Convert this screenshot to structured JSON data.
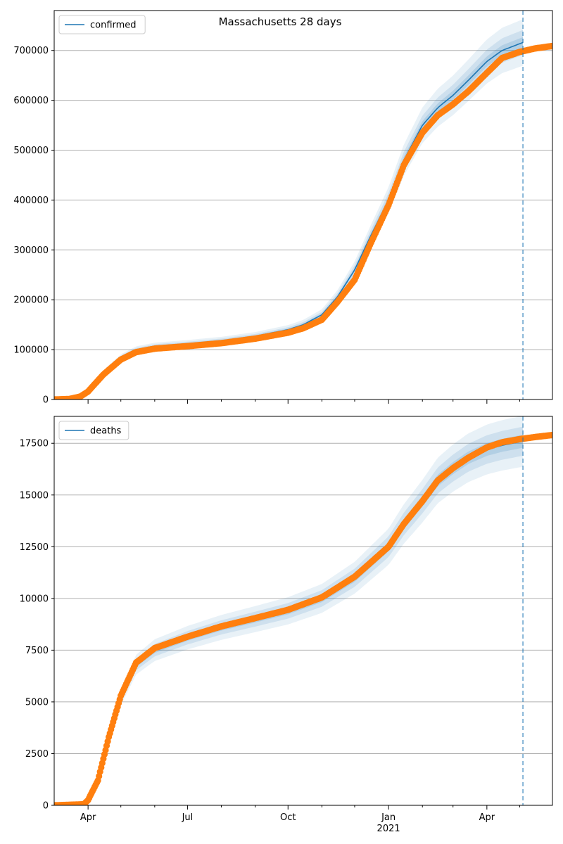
{
  "figure": {
    "title": "Massachusetts 28 days"
  },
  "colors": {
    "model": "#1f77b4",
    "observed": "#ff7f0e",
    "band": "#1f77b4",
    "grid": "#b0b0b0",
    "forecast_line": "#1f77b4"
  },
  "chart_data": [
    {
      "type": "line",
      "legend": "confirmed",
      "legend_position": "top-left",
      "grid": "y",
      "x_range": [
        "2020-03-01",
        "2021-05-31"
      ],
      "ylim": [
        0,
        780000
      ],
      "y_ticks": [
        0,
        100000,
        200000,
        300000,
        400000,
        500000,
        600000,
        700000
      ],
      "y_tick_labels": [
        "0",
        "100000",
        "200000",
        "300000",
        "400000",
        "500000",
        "600000",
        "700000"
      ],
      "forecast_start": "2021-05-04",
      "model_points": [
        [
          "2020-03-01",
          0
        ],
        [
          "2020-03-20",
          5000
        ],
        [
          "2020-04-01",
          18000
        ],
        [
          "2020-04-15",
          55000
        ],
        [
          "2020-05-01",
          85000
        ],
        [
          "2020-05-15",
          100000
        ],
        [
          "2020-06-01",
          107000
        ],
        [
          "2020-07-01",
          112000
        ],
        [
          "2020-08-01",
          118000
        ],
        [
          "2020-09-01",
          127000
        ],
        [
          "2020-10-01",
          140000
        ],
        [
          "2020-10-15",
          150000
        ],
        [
          "2020-11-01",
          170000
        ],
        [
          "2020-11-15",
          205000
        ],
        [
          "2020-12-01",
          260000
        ],
        [
          "2020-12-15",
          325000
        ],
        [
          "2021-01-01",
          400000
        ],
        [
          "2021-01-15",
          480000
        ],
        [
          "2021-02-01",
          550000
        ],
        [
          "2021-02-15",
          585000
        ],
        [
          "2021-03-01",
          610000
        ],
        [
          "2021-03-15",
          640000
        ],
        [
          "2021-04-01",
          678000
        ],
        [
          "2021-04-15",
          700000
        ],
        [
          "2021-05-04",
          716000
        ]
      ],
      "band_rel": [
        0.015,
        0.035,
        0.065
      ],
      "observed_points": [
        [
          "2020-03-01",
          0
        ],
        [
          "2020-03-15",
          1000
        ],
        [
          "2020-03-25",
          6000
        ],
        [
          "2020-04-01",
          16000
        ],
        [
          "2020-04-15",
          50000
        ],
        [
          "2020-05-01",
          80000
        ],
        [
          "2020-05-15",
          95000
        ],
        [
          "2020-06-01",
          102000
        ],
        [
          "2020-07-01",
          107000
        ],
        [
          "2020-08-01",
          113000
        ],
        [
          "2020-09-01",
          122000
        ],
        [
          "2020-10-01",
          134000
        ],
        [
          "2020-10-15",
          143000
        ],
        [
          "2020-11-01",
          160000
        ],
        [
          "2020-11-15",
          195000
        ],
        [
          "2020-12-01",
          240000
        ],
        [
          "2020-12-15",
          310000
        ],
        [
          "2021-01-01",
          390000
        ],
        [
          "2021-01-15",
          470000
        ],
        [
          "2021-02-01",
          535000
        ],
        [
          "2021-02-15",
          570000
        ],
        [
          "2021-03-01",
          592000
        ],
        [
          "2021-03-15",
          618000
        ],
        [
          "2021-04-01",
          655000
        ],
        [
          "2021-04-15",
          685000
        ],
        [
          "2021-05-01",
          697000
        ],
        [
          "2021-05-15",
          704000
        ],
        [
          "2021-05-31",
          709000
        ]
      ]
    },
    {
      "type": "line",
      "legend": "deaths",
      "legend_position": "top-left",
      "grid": "y",
      "x_range": [
        "2020-03-01",
        "2021-05-31"
      ],
      "ylim": [
        0,
        18800
      ],
      "y_ticks": [
        0,
        2500,
        5000,
        7500,
        10000,
        12500,
        15000,
        17500
      ],
      "y_tick_labels": [
        "0",
        "2500",
        "5000",
        "7500",
        "10000",
        "12500",
        "15000",
        "17500"
      ],
      "x_ticks": [
        "2020-04-01",
        "2020-07-01",
        "2020-10-01",
        "2021-01-01",
        "2021-04-01"
      ],
      "x_tick_labels": [
        "Apr",
        "Jul",
        "Oct",
        "Jan",
        "Apr"
      ],
      "x_tick_sublabels": [
        "",
        "",
        "",
        "2021",
        ""
      ],
      "x_minor_ticks": [
        "2020-05-01",
        "2020-06-01",
        "2020-08-01",
        "2020-09-01",
        "2020-11-01",
        "2020-12-01",
        "2021-02-01",
        "2021-03-01",
        "2021-05-01"
      ],
      "forecast_start": "2021-05-04",
      "model_points": [
        [
          "2020-03-01",
          0
        ],
        [
          "2020-03-25",
          50
        ],
        [
          "2020-04-01",
          200
        ],
        [
          "2020-04-10",
          1200
        ],
        [
          "2020-04-20",
          3200
        ],
        [
          "2020-05-01",
          5200
        ],
        [
          "2020-05-15",
          6800
        ],
        [
          "2020-06-01",
          7500
        ],
        [
          "2020-07-01",
          8100
        ],
        [
          "2020-08-01",
          8600
        ],
        [
          "2020-09-01",
          9000
        ],
        [
          "2020-10-01",
          9400
        ],
        [
          "2020-11-01",
          10000
        ],
        [
          "2020-12-01",
          11000
        ],
        [
          "2021-01-01",
          12500
        ],
        [
          "2021-01-15",
          13600
        ],
        [
          "2021-02-01",
          14700
        ],
        [
          "2021-02-15",
          15700
        ],
        [
          "2021-03-01",
          16300
        ],
        [
          "2021-03-15",
          16800
        ],
        [
          "2021-04-01",
          17200
        ],
        [
          "2021-04-15",
          17400
        ],
        [
          "2021-05-04",
          17600
        ]
      ],
      "band_rel": [
        0.018,
        0.04,
        0.07
      ],
      "observed_points": [
        [
          "2020-03-01",
          0
        ],
        [
          "2020-03-28",
          50
        ],
        [
          "2020-04-01",
          250
        ],
        [
          "2020-04-10",
          1200
        ],
        [
          "2020-04-20",
          3300
        ],
        [
          "2020-05-01",
          5300
        ],
        [
          "2020-05-15",
          6900
        ],
        [
          "2020-06-01",
          7600
        ],
        [
          "2020-07-01",
          8150
        ],
        [
          "2020-08-01",
          8650
        ],
        [
          "2020-09-01",
          9050
        ],
        [
          "2020-10-01",
          9450
        ],
        [
          "2020-11-01",
          10050
        ],
        [
          "2020-12-01",
          11050
        ],
        [
          "2021-01-01",
          12500
        ],
        [
          "2021-01-15",
          13600
        ],
        [
          "2021-02-01",
          14700
        ],
        [
          "2021-02-15",
          15700
        ],
        [
          "2021-03-01",
          16300
        ],
        [
          "2021-03-15",
          16800
        ],
        [
          "2021-04-01",
          17300
        ],
        [
          "2021-04-15",
          17550
        ],
        [
          "2021-05-01",
          17700
        ],
        [
          "2021-05-15",
          17800
        ],
        [
          "2021-05-31",
          17900
        ]
      ]
    }
  ]
}
